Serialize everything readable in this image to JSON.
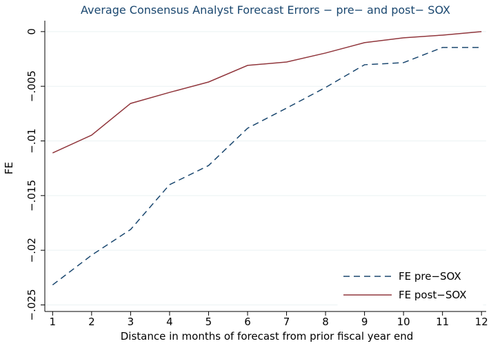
{
  "chart_data": {
    "type": "line",
    "title": "Average Consensus Analyst Forecast Errors −  pre− and post− SOX",
    "xlabel": "Distance in months of forecast from prior fiscal year end",
    "ylabel": "FE",
    "x": [
      1,
      2,
      3,
      4,
      5,
      6,
      7,
      8,
      9,
      10,
      11,
      12
    ],
    "series": [
      {
        "name": "FE pre−SOX",
        "color": "#1a476f",
        "dash": true,
        "values": [
          -0.02317,
          -0.02045,
          -0.0181,
          -0.014,
          -0.01225,
          -0.00884,
          -0.007,
          -0.00511,
          -0.00303,
          -0.00284,
          -0.00145,
          -0.00145
        ]
      },
      {
        "name": "FE post−SOX",
        "color": "#90353b",
        "dash": false,
        "values": [
          -0.0111,
          -0.00947,
          -0.00657,
          -0.00556,
          -0.00461,
          -0.00309,
          -0.00278,
          -0.00196,
          -0.00101,
          -0.00057,
          -0.00032,
          0
        ]
      }
    ],
    "xlim": [
      0.8,
      12.12
    ],
    "xticks": [
      1,
      2,
      3,
      4,
      5,
      6,
      7,
      8,
      9,
      10,
      11,
      12
    ],
    "ylim": [
      -0.0256,
      0.001
    ],
    "yticks": [
      {
        "value": -0.025,
        "label": "−.025"
      },
      {
        "value": -0.02,
        "label": "−.02"
      },
      {
        "value": -0.015,
        "label": "−.015"
      },
      {
        "value": -0.01,
        "label": "−.01"
      },
      {
        "value": -0.005,
        "label": "−.005"
      },
      0
    ],
    "grid": true,
    "legend": "lower right"
  }
}
